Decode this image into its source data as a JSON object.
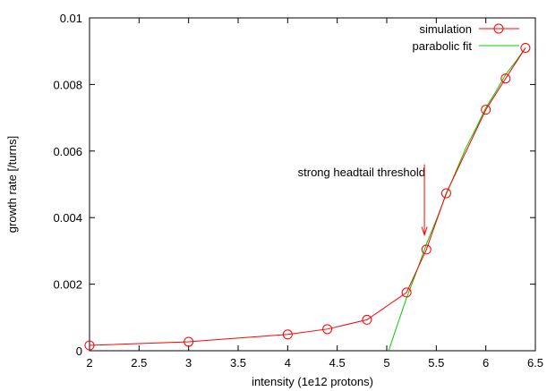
{
  "chart_data": {
    "type": "line",
    "title": "",
    "xlabel": "intensity (1e12 protons)",
    "ylabel": "growth rate [/turns]",
    "xlim": [
      2,
      6.5
    ],
    "ylim": [
      0,
      0.01
    ],
    "xticks": [
      2,
      2.5,
      3,
      3.5,
      4,
      4.5,
      5,
      5.5,
      6,
      6.5
    ],
    "xtick_labels": [
      "2",
      "2.5",
      "3",
      "3.5",
      "4",
      "4.5",
      "5",
      "5.5",
      "6",
      "6.5"
    ],
    "yticks": [
      0,
      0.002,
      0.004,
      0.006,
      0.008,
      0.01
    ],
    "ytick_labels": [
      "0",
      "0.002",
      "0.004",
      "0.006",
      "0.008",
      "0.01"
    ],
    "grid": false,
    "legend_position": "top-right",
    "series": [
      {
        "name": "simulation",
        "color": "#ff0000",
        "marker": "circle",
        "x": [
          2.0,
          3.0,
          4.0,
          4.4,
          4.8,
          5.2,
          5.4,
          5.6,
          6.0,
          6.2,
          6.4
        ],
        "y": [
          0.00016,
          0.00027,
          0.00049,
          0.00065,
          0.00093,
          0.00175,
          0.00304,
          0.00473,
          0.00724,
          0.00818,
          0.0091
        ]
      },
      {
        "name": "parabolic fit",
        "color": "#00cc00",
        "marker": "none",
        "x": [
          5.02,
          5.1,
          5.2,
          5.3,
          5.4,
          5.5,
          5.6,
          5.7,
          5.8,
          5.9,
          6.0,
          6.1,
          6.2,
          6.3,
          6.4
        ],
        "y": [
          0.0,
          0.00072,
          0.00158,
          0.00237,
          0.0032,
          0.00393,
          0.0047,
          0.0054,
          0.0061,
          0.00668,
          0.0073,
          0.00778,
          0.0083,
          0.00868,
          0.0091
        ]
      }
    ],
    "annotations": [
      {
        "text": "strong headtail threshold",
        "arrow_x": 5.38,
        "arrow_y_from": 0.0056,
        "arrow_y_to": 0.00348,
        "color": "#ff0000"
      }
    ]
  }
}
